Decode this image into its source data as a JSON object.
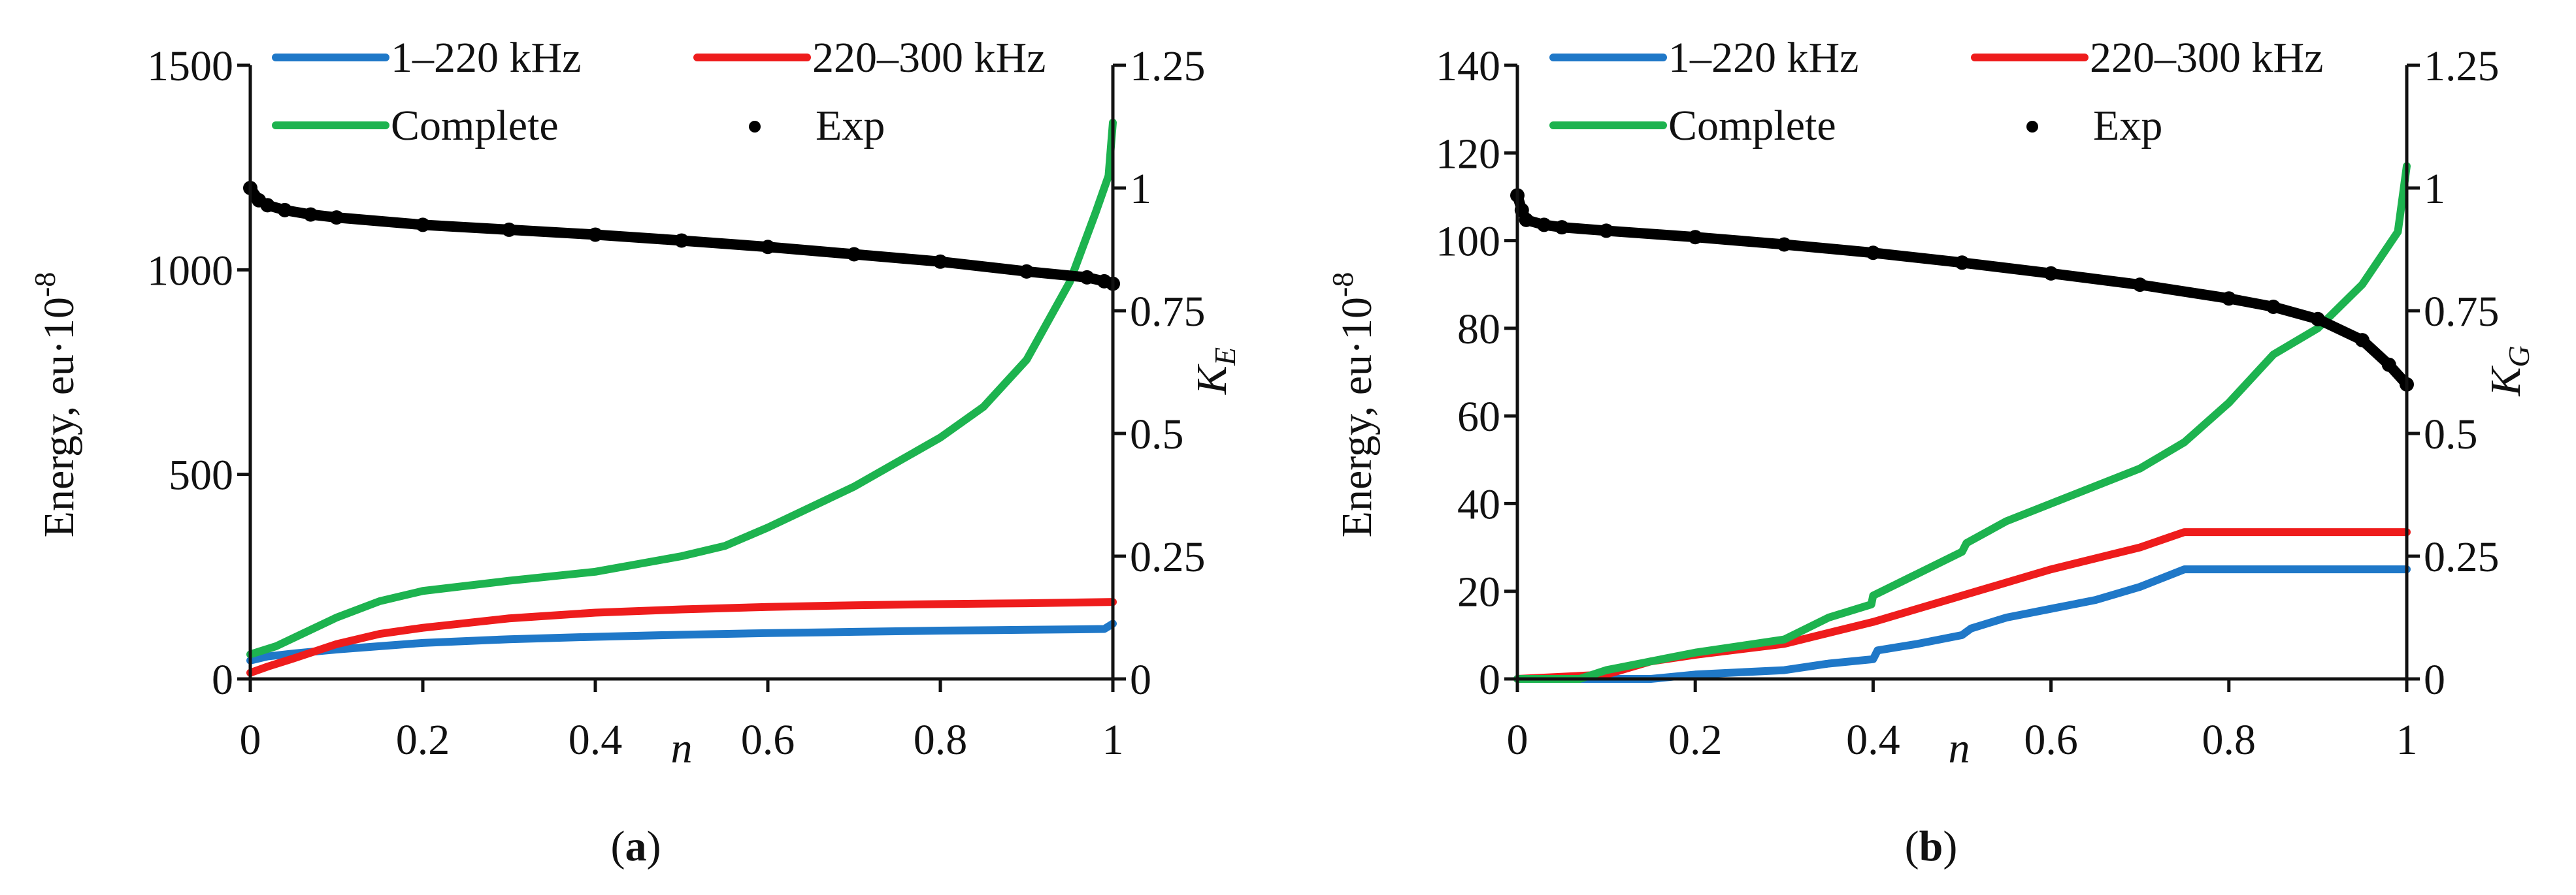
{
  "chart_data": [
    {
      "type": "line",
      "panel_label": "a",
      "xlabel": "n",
      "ylabel": "Energy, eu·10",
      "ylabel_exp": "-8",
      "y2label": "K",
      "y2label_sub": "E",
      "xlim": [
        0,
        1
      ],
      "ylim": [
        0,
        1500
      ],
      "y2lim": [
        0,
        1.25
      ],
      "x_ticks": [
        "0",
        "0.2",
        "0.4",
        "0.6",
        "0.8",
        "1"
      ],
      "y_ticks": [
        "0",
        "500",
        "1000",
        "1500"
      ],
      "y2_ticks": [
        "0",
        "0.25",
        "0.5",
        "0.75",
        "1",
        "1.25"
      ],
      "legend": [
        "1–220 kHz",
        "220–300 kHz",
        "Complete",
        "Exp"
      ],
      "colors": {
        "s1": "#1f78c8",
        "s2": "#ee1c1c",
        "complete": "#1db34f",
        "exp": "#000000"
      },
      "series": [
        {
          "name": "1–220 kHz",
          "axis": "left",
          "x": [
            0,
            0.02,
            0.05,
            0.1,
            0.2,
            0.3,
            0.4,
            0.5,
            0.6,
            0.7,
            0.8,
            0.9,
            0.99,
            1
          ],
          "y": [
            45,
            55,
            62,
            72,
            88,
            97,
            103,
            108,
            112,
            115,
            118,
            120,
            122,
            135
          ]
        },
        {
          "name": "220–300 kHz",
          "axis": "left",
          "x": [
            0,
            0.02,
            0.05,
            0.1,
            0.15,
            0.2,
            0.3,
            0.4,
            0.5,
            0.6,
            0.7,
            0.8,
            0.9,
            1
          ],
          "y": [
            15,
            30,
            50,
            85,
            110,
            125,
            148,
            162,
            170,
            176,
            180,
            183,
            185,
            188
          ]
        },
        {
          "name": "Complete",
          "axis": "left",
          "x": [
            0,
            0.03,
            0.06,
            0.1,
            0.15,
            0.2,
            0.3,
            0.4,
            0.5,
            0.55,
            0.6,
            0.7,
            0.8,
            0.85,
            0.9,
            0.95,
            0.98,
            0.995,
            1
          ],
          "y": [
            60,
            80,
            110,
            150,
            190,
            215,
            240,
            262,
            300,
            325,
            370,
            470,
            590,
            665,
            780,
            970,
            1140,
            1230,
            1360
          ]
        },
        {
          "name": "Exp",
          "axis": "right",
          "marker": "dot",
          "x": [
            0,
            0.01,
            0.02,
            0.04,
            0.07,
            0.1,
            0.2,
            0.3,
            0.4,
            0.5,
            0.6,
            0.7,
            0.8,
            0.9,
            0.97,
            0.99,
            1
          ],
          "y": [
            1.0,
            0.975,
            0.965,
            0.955,
            0.946,
            0.94,
            0.925,
            0.915,
            0.905,
            0.893,
            0.88,
            0.865,
            0.85,
            0.83,
            0.818,
            0.81,
            0.805
          ]
        }
      ]
    },
    {
      "type": "line",
      "panel_label": "b",
      "xlabel": "n",
      "ylabel": "Energy, eu·10",
      "ylabel_exp": "-8",
      "y2label": "K",
      "y2label_sub": "G",
      "xlim": [
        0,
        1
      ],
      "ylim": [
        0,
        140
      ],
      "y2lim": [
        0,
        1.25
      ],
      "x_ticks": [
        "0",
        "0.2",
        "0.4",
        "0.6",
        "0.8",
        "1"
      ],
      "y_ticks": [
        "0",
        "20",
        "40",
        "60",
        "80",
        "100",
        "120",
        "140"
      ],
      "y2_ticks": [
        "0",
        "0.25",
        "0.5",
        "0.75",
        "1",
        "1.25"
      ],
      "legend": [
        "1–220 kHz",
        "220–300 kHz",
        "Complete",
        "Exp"
      ],
      "colors": {
        "s1": "#1f78c8",
        "s2": "#ee1c1c",
        "complete": "#1db34f",
        "exp": "#000000"
      },
      "series": [
        {
          "name": "1–220 kHz",
          "axis": "left",
          "x": [
            0,
            0.15,
            0.2,
            0.3,
            0.35,
            0.4,
            0.405,
            0.45,
            0.5,
            0.51,
            0.55,
            0.6,
            0.65,
            0.7,
            0.75,
            0.8,
            1
          ],
          "y": [
            0,
            0,
            1,
            2,
            3.5,
            4.5,
            6.5,
            8,
            10,
            11.5,
            14,
            16,
            18,
            21,
            25,
            25,
            25
          ]
        },
        {
          "name": "220–300 kHz",
          "axis": "left",
          "x": [
            0,
            0.1,
            0.15,
            0.2,
            0.3,
            0.4,
            0.5,
            0.6,
            0.7,
            0.75,
            0.8,
            1
          ],
          "y": [
            0,
            1,
            4,
            5.5,
            8,
            13,
            19,
            25,
            30,
            33.5,
            33.5,
            33.5
          ]
        },
        {
          "name": "Complete",
          "axis": "left",
          "x": [
            0,
            0.07,
            0.1,
            0.15,
            0.2,
            0.3,
            0.35,
            0.398,
            0.4,
            0.45,
            0.5,
            0.505,
            0.55,
            0.6,
            0.65,
            0.7,
            0.75,
            0.8,
            0.85,
            0.9,
            0.95,
            0.99,
            1
          ],
          "y": [
            0,
            0,
            2,
            4,
            6,
            9,
            14,
            17,
            19,
            24,
            29,
            31,
            36,
            40,
            44,
            48,
            54,
            63,
            74,
            80,
            90,
            102,
            117
          ]
        },
        {
          "name": "Exp",
          "axis": "right",
          "marker": "dot",
          "x": [
            0,
            0.005,
            0.01,
            0.03,
            0.05,
            0.1,
            0.2,
            0.3,
            0.4,
            0.5,
            0.6,
            0.7,
            0.8,
            0.85,
            0.9,
            0.95,
            0.98,
            1
          ],
          "y": [
            0.985,
            0.955,
            0.935,
            0.925,
            0.92,
            0.913,
            0.9,
            0.885,
            0.868,
            0.848,
            0.826,
            0.803,
            0.775,
            0.758,
            0.733,
            0.69,
            0.64,
            0.6
          ]
        }
      ]
    }
  ]
}
